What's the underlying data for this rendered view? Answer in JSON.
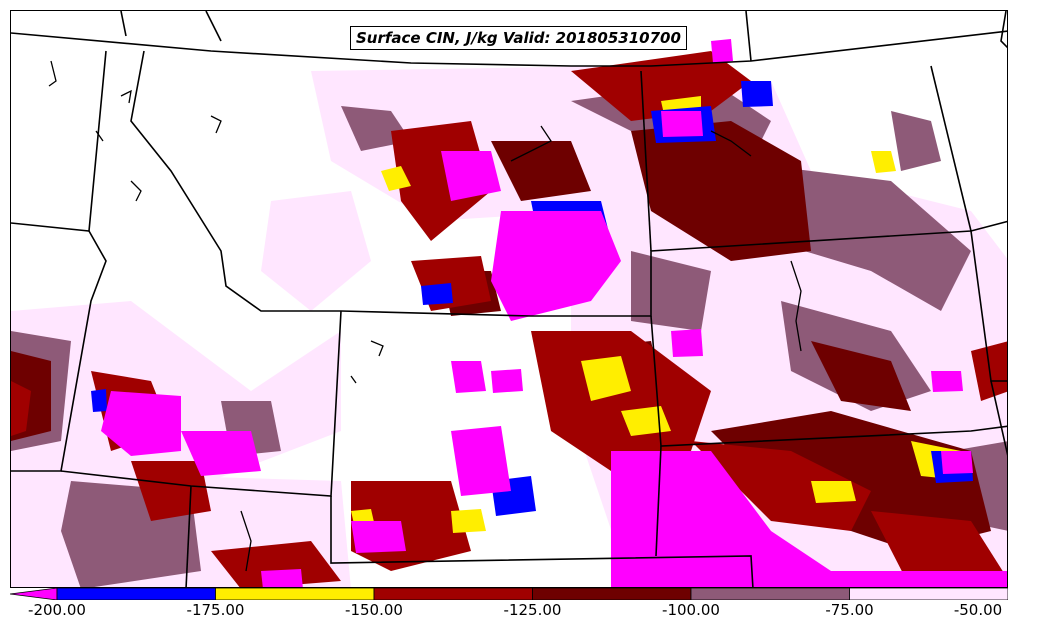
{
  "title": "Surface CIN, J/kg Valid: 201805310700",
  "colors": {
    "lt_-200": "#ff00ff",
    "-200_-175": "#0000ff",
    "-175_-150": "#ffee00",
    "-150_-125": "#a00000",
    "-125_-100": "#6e0000",
    "-100_-75": "#8e5a78",
    "-75_-50": "#ffe6ff"
  },
  "legend": {
    "ticks": [
      "-200.00",
      "-175.00",
      "-150.00",
      "-125.00",
      "-100.00",
      "-75.00",
      "-50.00"
    ],
    "tick_values": [
      -200,
      -175,
      -150,
      -125,
      -100,
      -75,
      -50
    ]
  }
}
